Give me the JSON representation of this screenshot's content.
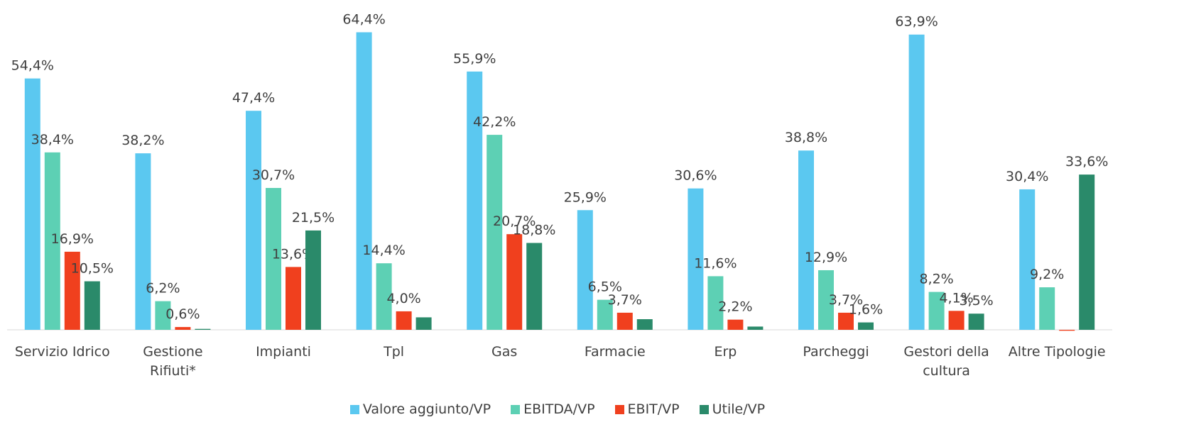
{
  "chart_data": {
    "type": "bar",
    "categories": [
      "Servizio Idrico",
      "Gestione\nRifiuti*",
      "Impianti",
      "Tpl",
      "Gas",
      "Farmacie",
      "Erp",
      "Parcheggi",
      "Gestori della\ncultura",
      "Altre Tipologie"
    ],
    "ylim": [
      0,
      70
    ],
    "series": [
      {
        "name": "Valore aggiunto/VP",
        "color": "#5bc8f0",
        "values": [
          54.4,
          38.2,
          47.4,
          64.4,
          55.9,
          25.9,
          30.6,
          38.8,
          63.9,
          30.4
        ],
        "value_labels": [
          "54,4%",
          "38,2%",
          "47,4%",
          "64,4%",
          "55,9%",
          "25,9%",
          "30,6%",
          "38,8%",
          "63,9%",
          "30,4%"
        ]
      },
      {
        "name": "EBITDA/VP",
        "color": "#5dd0b4",
        "values": [
          38.4,
          6.2,
          30.7,
          14.4,
          42.2,
          6.5,
          11.6,
          12.9,
          8.2,
          9.2
        ],
        "value_labels": [
          "38,4%",
          "6,2%",
          "30,7%",
          "14,4%",
          "42,2%",
          "6,5%",
          "11,6%",
          "12,9%",
          "8,2%",
          "9,2%"
        ]
      },
      {
        "name": "EBIT/VP",
        "color": "#f0401e",
        "values": [
          16.9,
          0.6,
          13.6,
          4.0,
          20.7,
          3.7,
          2.2,
          3.7,
          4.1,
          -0.2
        ],
        "value_labels": [
          "16,9%",
          "0,6%",
          "13,6%",
          "4,0%",
          "20,7%",
          "3,7%",
          "2,2%",
          "3,7%",
          "4,1%",
          null
        ]
      },
      {
        "name": "Utile/VP",
        "color": "#2a8a6a",
        "values": [
          10.5,
          0.2,
          21.5,
          2.7,
          18.8,
          2.3,
          0.7,
          1.6,
          3.5,
          33.6
        ],
        "value_labels": [
          "10,5%",
          null,
          "21,5%",
          null,
          "18,8%",
          null,
          null,
          "1,6%",
          "3,5%",
          "33,6%"
        ]
      }
    ]
  }
}
